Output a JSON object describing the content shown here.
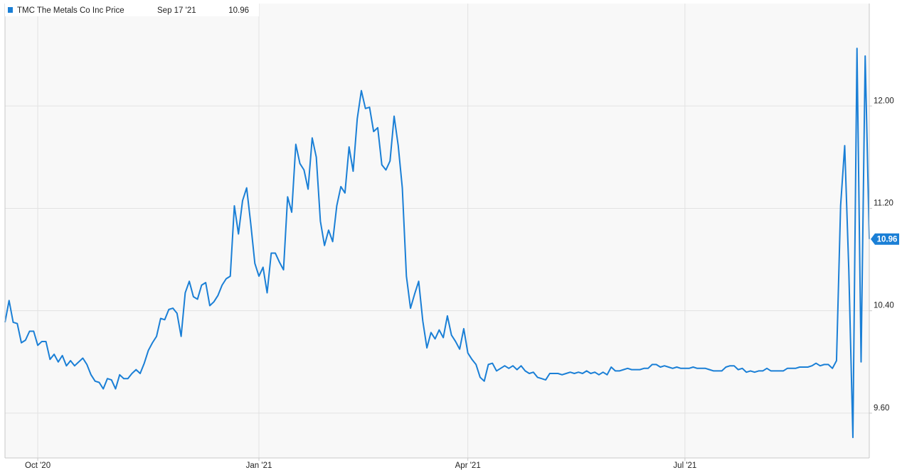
{
  "chart_data": {
    "type": "line",
    "legend_date": "Sep 17 '21",
    "categories": [
      null,
      null,
      null,
      null,
      null,
      null,
      null,
      null,
      "Oct '20",
      null,
      null,
      null,
      null,
      null,
      null,
      null,
      null,
      null,
      null,
      null,
      null,
      null,
      null,
      null,
      null,
      null,
      null,
      null,
      null,
      null,
      null,
      null,
      null,
      null,
      null,
      null,
      null,
      null,
      null,
      null,
      null,
      null,
      null,
      null,
      null,
      null,
      null,
      null,
      null,
      null,
      null,
      null,
      null,
      null,
      null,
      null,
      null,
      null,
      null,
      null,
      null,
      null,
      "Jan '21",
      null,
      null,
      null,
      null,
      null,
      null,
      null,
      null,
      null,
      null,
      null,
      null,
      null,
      null,
      null,
      null,
      null,
      null,
      null,
      null,
      null,
      null,
      null,
      null,
      null,
      null,
      null,
      null,
      null,
      null,
      null,
      null,
      null,
      null,
      null,
      null,
      null,
      null,
      null,
      null,
      null,
      null,
      null,
      null,
      null,
      null,
      null,
      null,
      null,
      null,
      "Apr '21",
      null,
      null,
      null,
      null,
      null,
      null,
      null,
      null,
      null,
      null,
      null,
      null,
      null,
      null,
      null,
      null,
      null,
      null,
      null,
      null,
      null,
      null,
      null,
      null,
      null,
      null,
      null,
      null,
      null,
      null,
      null,
      null,
      null,
      null,
      null,
      null,
      null,
      null,
      null,
      null,
      null,
      null,
      null,
      null,
      null,
      null,
      null,
      null,
      null,
      null,
      null,
      null,
      "Jul '21",
      null,
      null,
      null,
      null,
      null,
      null,
      null,
      null,
      null,
      null,
      null,
      null,
      null,
      null,
      null,
      null,
      null,
      null,
      null,
      null,
      null,
      null,
      null,
      null,
      null,
      null,
      null,
      null,
      null,
      null,
      null,
      null,
      null,
      null,
      null,
      null,
      null,
      null,
      null,
      null,
      null,
      null,
      null,
      null,
      null
    ],
    "series": [
      {
        "name": "TMC The Metals Co Inc Price",
        "color": "#1a7fd6",
        "values": [
          10.31,
          10.48,
          10.31,
          10.3,
          10.15,
          10.17,
          10.24,
          10.24,
          10.13,
          10.16,
          10.16,
          10.02,
          10.06,
          10.0,
          10.05,
          9.97,
          10.01,
          9.97,
          10.0,
          10.03,
          9.98,
          9.9,
          9.85,
          9.84,
          9.79,
          9.87,
          9.86,
          9.79,
          9.9,
          9.87,
          9.87,
          9.91,
          9.94,
          9.91,
          9.99,
          10.09,
          10.15,
          10.2,
          10.34,
          10.33,
          10.41,
          10.42,
          10.38,
          10.2,
          10.54,
          10.63,
          10.51,
          10.49,
          10.6,
          10.62,
          10.44,
          10.47,
          10.52,
          10.6,
          10.65,
          10.67,
          11.22,
          11.0,
          11.26,
          11.36,
          11.08,
          10.77,
          10.67,
          10.74,
          10.54,
          10.85,
          10.85,
          10.78,
          10.72,
          11.29,
          11.17,
          11.7,
          11.55,
          11.5,
          11.35,
          11.75,
          11.6,
          11.1,
          10.91,
          11.03,
          10.94,
          11.22,
          11.37,
          11.32,
          11.68,
          11.49,
          11.9,
          12.12,
          11.98,
          11.99,
          11.8,
          11.83,
          11.54,
          11.5,
          11.57,
          11.92,
          11.69,
          11.36,
          10.67,
          10.42,
          10.53,
          10.63,
          10.32,
          10.11,
          10.23,
          10.18,
          10.25,
          10.19,
          10.36,
          10.21,
          10.16,
          10.1,
          10.26,
          10.07,
          10.02,
          9.98,
          9.88,
          9.85,
          9.98,
          9.99,
          9.93,
          9.95,
          9.97,
          9.95,
          9.97,
          9.94,
          9.97,
          9.93,
          9.91,
          9.92,
          9.88,
          9.87,
          9.86,
          9.91,
          9.91,
          9.91,
          9.9,
          9.91,
          9.92,
          9.91,
          9.92,
          9.91,
          9.93,
          9.91,
          9.92,
          9.9,
          9.92,
          9.9,
          9.96,
          9.93,
          9.93,
          9.94,
          9.95,
          9.94,
          9.94,
          9.94,
          9.95,
          9.95,
          9.98,
          9.98,
          9.96,
          9.97,
          9.96,
          9.95,
          9.96,
          9.95,
          9.95,
          9.95,
          9.96,
          9.95,
          9.95,
          9.95,
          9.94,
          9.93,
          9.93,
          9.93,
          9.96,
          9.97,
          9.97,
          9.94,
          9.95,
          9.92,
          9.93,
          9.92,
          9.93,
          9.93,
          9.95,
          9.93,
          9.93,
          9.93,
          9.93,
          9.95,
          9.95,
          9.95,
          9.96,
          9.96,
          9.96,
          9.97,
          9.99,
          9.97,
          9.98,
          9.98,
          9.95,
          10.01,
          11.22,
          11.69,
          10.72,
          9.41,
          12.45,
          10.0,
          12.39,
          10.96
        ]
      }
    ],
    "ylim": [
      9.25,
      12.8
    ],
    "yticks": [
      {
        "value": 9.6,
        "label": "9.60"
      },
      {
        "value": 10.4,
        "label": "10.40"
      },
      {
        "value": 11.2,
        "label": "11.20"
      },
      {
        "value": 12,
        "label": "12.00"
      }
    ],
    "grid": true
  }
}
